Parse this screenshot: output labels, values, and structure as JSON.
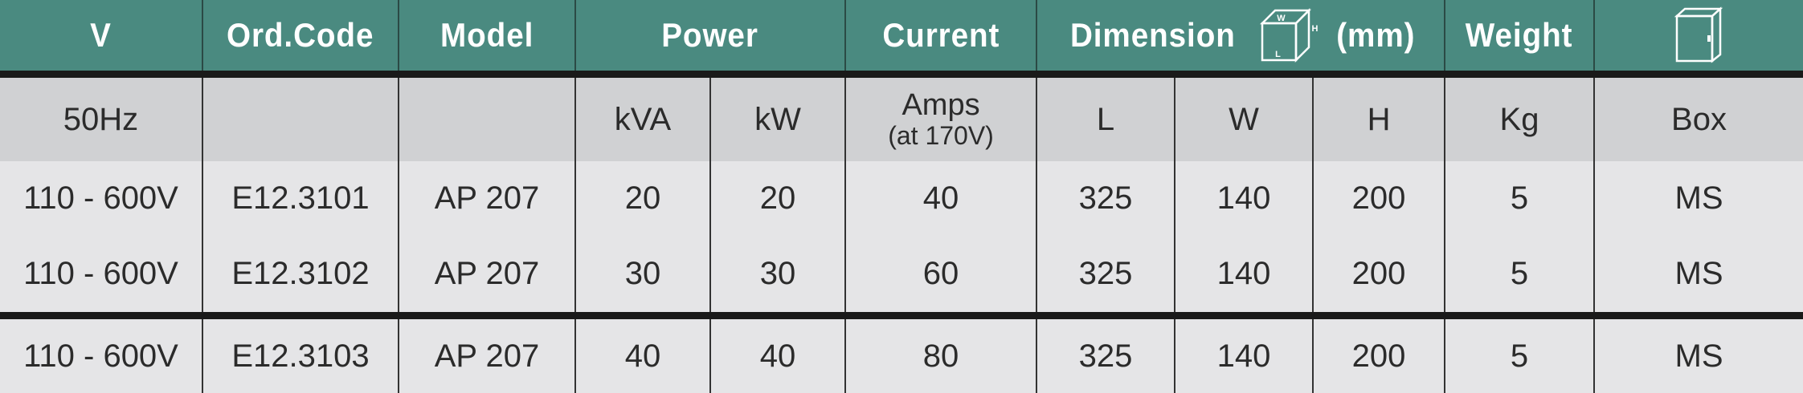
{
  "header": {
    "v": "V",
    "ord_code": "Ord.Code",
    "model": "Model",
    "power": "Power",
    "current": "Current",
    "dimension": "Dimension",
    "dimension_unit": "(mm)",
    "cube_labels": {
      "w": "W",
      "h": "H",
      "l": "L"
    },
    "weight": "Weight",
    "box_icon": "enclosure-box-icon"
  },
  "units": {
    "v": "50Hz",
    "ord_code": "",
    "model": "",
    "kva": "kVA",
    "kw": "kW",
    "amps": "Amps",
    "amps_note": "(at 170V)",
    "l": "L",
    "w": "W",
    "h": "H",
    "kg": "Kg",
    "box": "Box"
  },
  "rows": [
    {
      "v": "110 - 600V",
      "ord_code": "E12.3101",
      "model": "AP 207",
      "kva": "20",
      "kw": "20",
      "amps": "40",
      "l": "325",
      "w": "140",
      "h": "200",
      "kg": "5",
      "box": "MS"
    },
    {
      "v": "110 - 600V",
      "ord_code": "E12.3102",
      "model": "AP 207",
      "kva": "30",
      "kw": "30",
      "amps": "60",
      "l": "325",
      "w": "140",
      "h": "200",
      "kg": "5",
      "box": "MS"
    },
    {
      "v": "110 - 600V",
      "ord_code": "E12.3103",
      "model": "AP 207",
      "kva": "40",
      "kw": "40",
      "amps": "80",
      "l": "325",
      "w": "140",
      "h": "200",
      "kg": "5",
      "box": "MS"
    }
  ],
  "colors": {
    "header_bg": "#4a8a80",
    "header_text": "#ffffff",
    "unit_row_bg": "#d0d1d3",
    "data_row_bg": "#e5e5e7",
    "text": "#2b2b2b",
    "rule": "#1a1a1a"
  }
}
